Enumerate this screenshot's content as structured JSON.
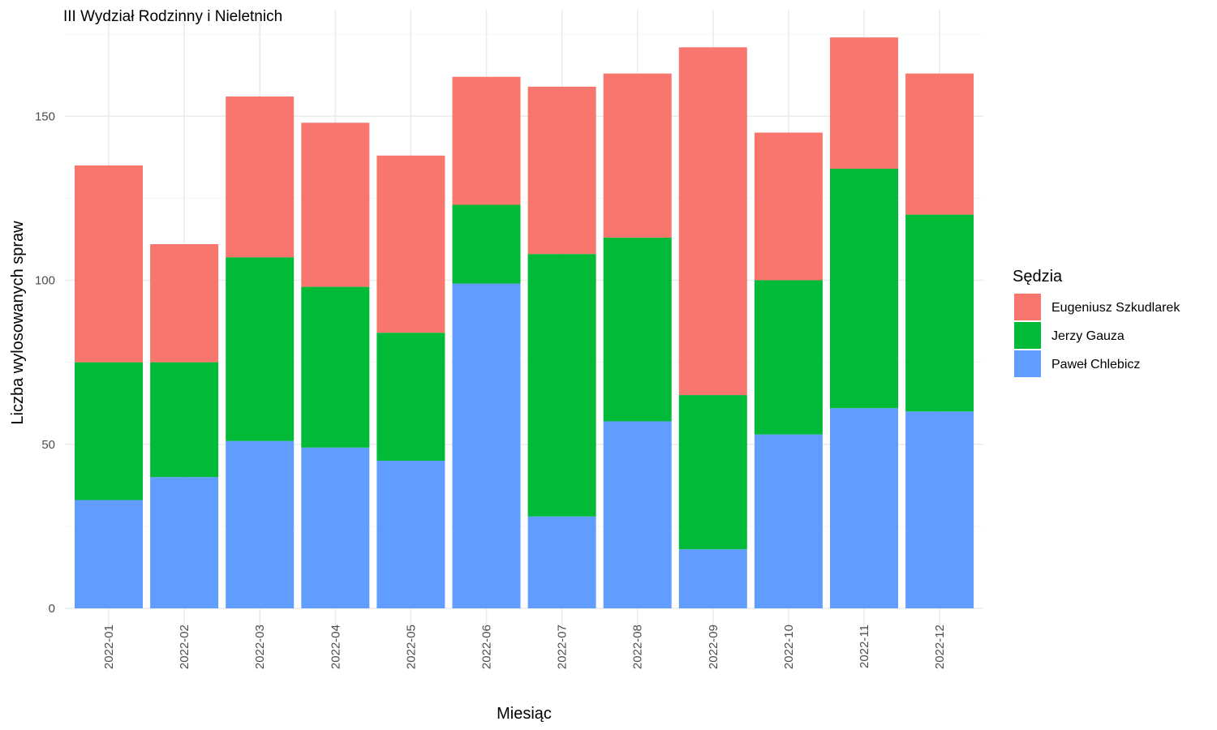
{
  "chart_data": {
    "type": "bar",
    "stacked": true,
    "title": "III Wydział Rodzinny i Nieletnich",
    "xlabel": "Miesiąc",
    "ylabel": "Liczba wylosowanych spraw",
    "ylim": [
      0,
      180
    ],
    "yticks": [
      0,
      50,
      100,
      150
    ],
    "grid": true,
    "legend": {
      "title": "Sędzia",
      "position": "right"
    },
    "categories": [
      "2022-01",
      "2022-02",
      "2022-03",
      "2022-04",
      "2022-05",
      "2022-06",
      "2022-07",
      "2022-08",
      "2022-09",
      "2022-10",
      "2022-11",
      "2022-12"
    ],
    "series": [
      {
        "name": "Eugeniusz Szkudlarek",
        "color": "#F8766D",
        "values": [
          60,
          36,
          49,
          50,
          54,
          39,
          51,
          50,
          106,
          45,
          40,
          43
        ]
      },
      {
        "name": "Jerzy Gauza",
        "color": "#00BA38",
        "values": [
          42,
          35,
          56,
          49,
          39,
          24,
          80,
          56,
          47,
          47,
          73,
          60
        ]
      },
      {
        "name": "Paweł Chlebicz",
        "color": "#619CFF",
        "values": [
          33,
          40,
          51,
          49,
          45,
          99,
          28,
          57,
          18,
          53,
          61,
          60
        ]
      }
    ],
    "stack_order_bottom_to_top": [
      "Paweł Chlebicz",
      "Jerzy Gauza",
      "Eugeniusz Szkudlarek"
    ]
  }
}
